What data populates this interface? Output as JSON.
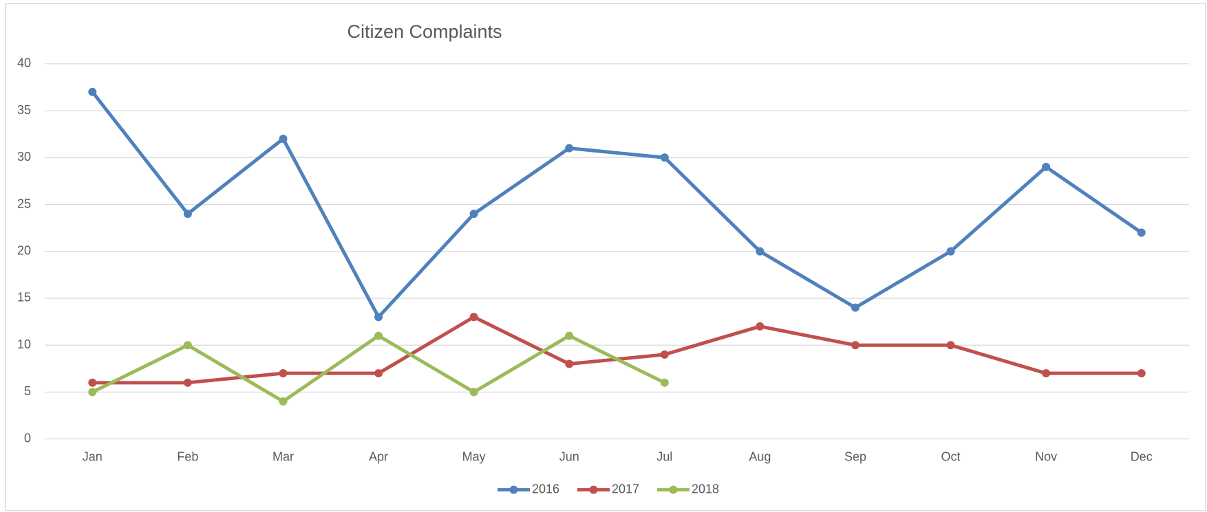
{
  "chart_data": {
    "type": "line",
    "title": "Citizen Complaints",
    "categories": [
      "Jan",
      "Feb",
      "Mar",
      "Apr",
      "May",
      "Jun",
      "Jul",
      "Aug",
      "Sep",
      "Oct",
      "Nov",
      "Dec"
    ],
    "series": [
      {
        "name": "2016",
        "color": "#4f81bd",
        "values": [
          37,
          24,
          32,
          13,
          24,
          31,
          30,
          20,
          14,
          20,
          29,
          22
        ]
      },
      {
        "name": "2017",
        "color": "#c0504d",
        "values": [
          6,
          6,
          7,
          7,
          13,
          8,
          9,
          12,
          10,
          10,
          7,
          7
        ]
      },
      {
        "name": "2018",
        "color": "#9bbb59",
        "values": [
          5,
          10,
          4,
          11,
          5,
          11,
          6,
          null,
          null,
          null,
          null,
          null
        ]
      }
    ],
    "ylim": [
      0,
      40
    ],
    "yticks": [
      0,
      5,
      10,
      15,
      20,
      25,
      30,
      35,
      40
    ],
    "grid": true,
    "legend": "bottom"
  }
}
